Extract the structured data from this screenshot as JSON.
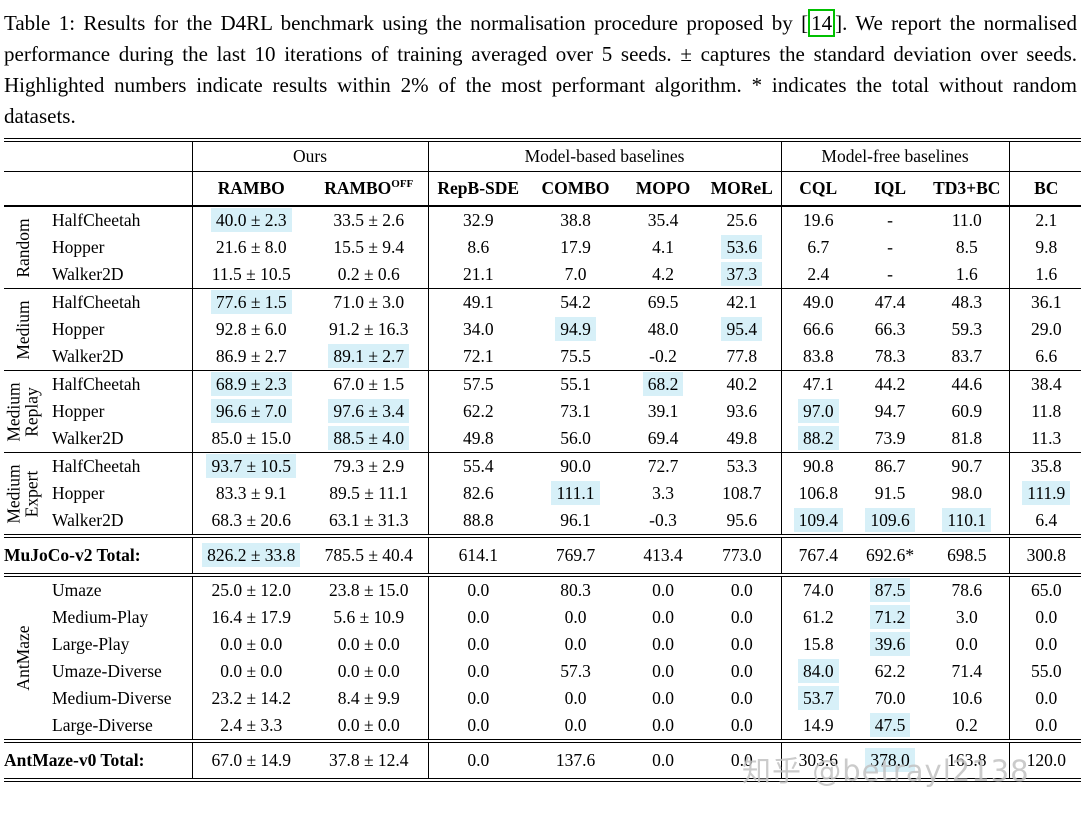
{
  "caption": {
    "pre": "Table 1: Results for the D4RL benchmark using the normalisation procedure proposed by [",
    "cite": "14",
    "post": "]. We report the normalised performance during the last 10 iterations of training averaged over 5 seeds. ± captures the standard deviation over seeds. Highlighted numbers indicate results within 2% of the most performant algorithm. * indicates the total without random datasets."
  },
  "watermark": "知乎 @betrayl2138",
  "highlight_color": "#d7f0f8",
  "citation_box_color": "#00c000",
  "table": {
    "group_headers": [
      {
        "label": "Ours",
        "span": 2
      },
      {
        "label": "Model-based baselines",
        "span": 4
      },
      {
        "label": "Model-free baselines",
        "span": 3
      }
    ],
    "columns": [
      {
        "label": "RAMBO"
      },
      {
        "label": "RAMBO",
        "sup": "OFF"
      },
      {
        "label": "RepB-SDE"
      },
      {
        "label": "COMBO"
      },
      {
        "label": "MOPO"
      },
      {
        "label": "MOReL"
      },
      {
        "label": "CQL"
      },
      {
        "label": "IQL"
      },
      {
        "label": "TD3+BC"
      },
      {
        "label": "BC"
      }
    ],
    "sections": [
      {
        "type": "group",
        "label": [
          "Random"
        ],
        "rule": false,
        "rows": [
          {
            "dataset": "HalfCheetah",
            "values": [
              "40.0 ± 2.3",
              "33.5 ± 2.6",
              "32.9",
              "38.8",
              "35.4",
              "25.6",
              "19.6",
              "-",
              "11.0",
              "2.1"
            ],
            "hl": [
              0
            ]
          },
          {
            "dataset": "Hopper",
            "values": [
              "21.6 ± 8.0",
              "15.5 ± 9.4",
              "8.6",
              "17.9",
              "4.1",
              "53.6",
              "6.7",
              "-",
              "8.5",
              "9.8"
            ],
            "hl": [
              5
            ]
          },
          {
            "dataset": "Walker2D",
            "values": [
              "11.5 ± 10.5",
              "0.2 ± 0.6",
              "21.1",
              "7.0",
              "4.2",
              "37.3",
              "2.4",
              "-",
              "1.6",
              "1.6"
            ],
            "hl": [
              5
            ]
          }
        ]
      },
      {
        "type": "group",
        "label": [
          "Medium"
        ],
        "rule": true,
        "rows": [
          {
            "dataset": "HalfCheetah",
            "values": [
              "77.6 ± 1.5",
              "71.0 ± 3.0",
              "49.1",
              "54.2",
              "69.5",
              "42.1",
              "49.0",
              "47.4",
              "48.3",
              "36.1"
            ],
            "hl": [
              0
            ]
          },
          {
            "dataset": "Hopper",
            "values": [
              "92.8 ± 6.0",
              "91.2 ± 16.3",
              "34.0",
              "94.9",
              "48.0",
              "95.4",
              "66.6",
              "66.3",
              "59.3",
              "29.0"
            ],
            "hl": [
              3,
              5
            ]
          },
          {
            "dataset": "Walker2D",
            "values": [
              "86.9 ± 2.7",
              "89.1 ± 2.7",
              "72.1",
              "75.5",
              "-0.2",
              "77.8",
              "83.8",
              "78.3",
              "83.7",
              "6.6"
            ],
            "hl": [
              1
            ]
          }
        ]
      },
      {
        "type": "group",
        "label": [
          "Medium",
          "Replay"
        ],
        "rule": true,
        "rows": [
          {
            "dataset": "HalfCheetah",
            "values": [
              "68.9 ± 2.3",
              "67.0 ± 1.5",
              "57.5",
              "55.1",
              "68.2",
              "40.2",
              "47.1",
              "44.2",
              "44.6",
              "38.4"
            ],
            "hl": [
              0,
              4
            ]
          },
          {
            "dataset": "Hopper",
            "values": [
              "96.6 ± 7.0",
              "97.6 ± 3.4",
              "62.2",
              "73.1",
              "39.1",
              "93.6",
              "97.0",
              "94.7",
              "60.9",
              "11.8"
            ],
            "hl": [
              0,
              1,
              6
            ]
          },
          {
            "dataset": "Walker2D",
            "values": [
              "85.0 ± 15.0",
              "88.5 ± 4.0",
              "49.8",
              "56.0",
              "69.4",
              "49.8",
              "88.2",
              "73.9",
              "81.8",
              "11.3"
            ],
            "hl": [
              1,
              6
            ]
          }
        ]
      },
      {
        "type": "group",
        "label": [
          "Medium",
          "Expert"
        ],
        "rule": true,
        "rows": [
          {
            "dataset": "HalfCheetah",
            "values": [
              "93.7 ± 10.5",
              "79.3 ± 2.9",
              "55.4",
              "90.0",
              "72.7",
              "53.3",
              "90.8",
              "86.7",
              "90.7",
              "35.8"
            ],
            "hl": [
              0
            ]
          },
          {
            "dataset": "Hopper",
            "values": [
              "83.3 ± 9.1",
              "89.5 ± 11.1",
              "82.6",
              "111.1",
              "3.3",
              "108.7",
              "106.8",
              "91.5",
              "98.0",
              "111.9"
            ],
            "hl": [
              3,
              9
            ]
          },
          {
            "dataset": "Walker2D",
            "values": [
              "68.3 ± 20.6",
              "63.1 ± 31.3",
              "88.8",
              "96.1",
              "-0.3",
              "95.6",
              "109.4",
              "109.6",
              "110.1",
              "6.4"
            ],
            "hl": [
              6,
              7,
              8
            ]
          }
        ]
      },
      {
        "type": "total",
        "label": "MuJoCo-v2 Total:",
        "values": [
          "826.2 ± 33.8",
          "785.5 ± 40.4",
          "614.1",
          "769.7",
          "413.4",
          "773.0",
          "767.4",
          "692.6*",
          "698.5",
          "300.8"
        ],
        "hl": [
          0
        ]
      },
      {
        "type": "group",
        "label": [
          "AntMaze"
        ],
        "rule": false,
        "rows": [
          {
            "dataset": "Umaze",
            "values": [
              "25.0 ± 12.0",
              "23.8 ± 15.0",
              "0.0",
              "80.3",
              "0.0",
              "0.0",
              "74.0",
              "87.5",
              "78.6",
              "65.0"
            ],
            "hl": [
              7
            ]
          },
          {
            "dataset": "Medium-Play",
            "values": [
              "16.4 ± 17.9",
              "5.6 ± 10.9",
              "0.0",
              "0.0",
              "0.0",
              "0.0",
              "61.2",
              "71.2",
              "3.0",
              "0.0"
            ],
            "hl": [
              7
            ]
          },
          {
            "dataset": "Large-Play",
            "values": [
              "0.0 ± 0.0",
              "0.0 ± 0.0",
              "0.0",
              "0.0",
              "0.0",
              "0.0",
              "15.8",
              "39.6",
              "0.0",
              "0.0"
            ],
            "hl": [
              7
            ]
          },
          {
            "dataset": "Umaze-Diverse",
            "values": [
              "0.0 ± 0.0",
              "0.0 ± 0.0",
              "0.0",
              "57.3",
              "0.0",
              "0.0",
              "84.0",
              "62.2",
              "71.4",
              "55.0"
            ],
            "hl": [
              6
            ]
          },
          {
            "dataset": "Medium-Diverse",
            "values": [
              "23.2 ± 14.2",
              "8.4 ± 9.9",
              "0.0",
              "0.0",
              "0.0",
              "0.0",
              "53.7",
              "70.0",
              "10.6",
              "0.0"
            ],
            "hl": [
              6
            ]
          },
          {
            "dataset": "Large-Diverse",
            "values": [
              "2.4 ± 3.3",
              "0.0 ± 0.0",
              "0.0",
              "0.0",
              "0.0",
              "0.0",
              "14.9",
              "47.5",
              "0.2",
              "0.0"
            ],
            "hl": [
              7
            ]
          }
        ]
      },
      {
        "type": "total",
        "label": "AntMaze-v0 Total:",
        "values": [
          "67.0 ± 14.9",
          "37.8 ± 12.4",
          "0.0",
          "137.6",
          "0.0",
          "0.0",
          "303.6",
          "378.0",
          "163.8",
          "120.0"
        ],
        "hl": [
          7
        ]
      }
    ]
  }
}
